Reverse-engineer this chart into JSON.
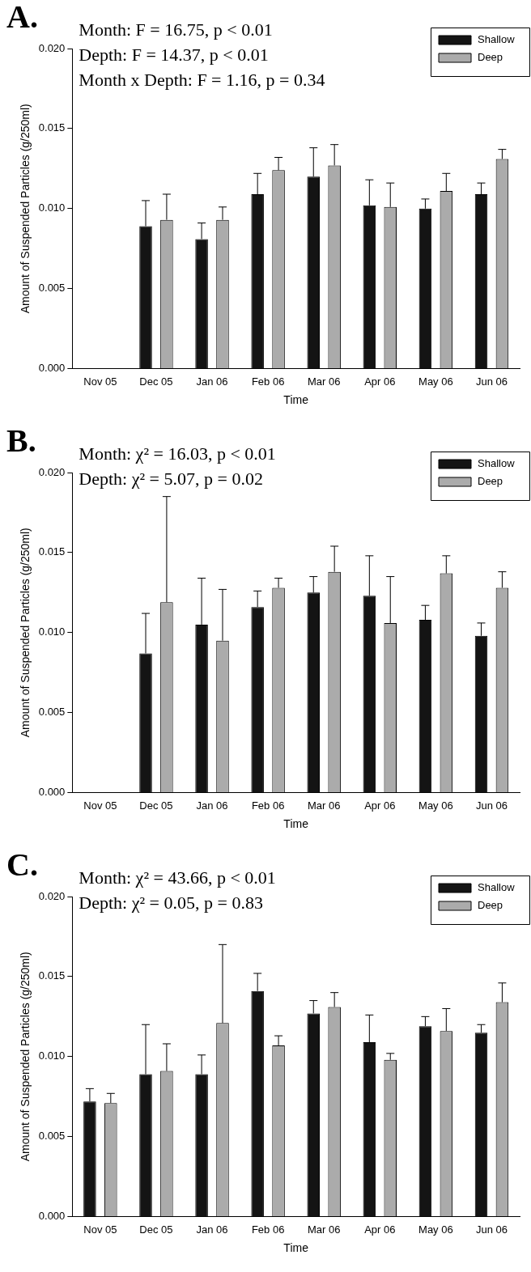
{
  "chart_data": [
    {
      "type": "bar",
      "title": "A.",
      "xlabel": "Time",
      "ylabel": "Amount of Suspended Particles (g/250ml)",
      "annotations": [
        "Month: F = 16.75, p < 0.01",
        "Depth: F = 14.37, p < 0.01",
        "Month x Depth: F = 1.16, p = 0.34"
      ],
      "categories": [
        "Nov 05",
        "Dec 05",
        "Jan 06",
        "Feb 06",
        "Mar 06",
        "Apr 06",
        "May 06",
        "Jun 06"
      ],
      "series": [
        {
          "name": "Shallow",
          "color": "#141414",
          "values": [
            null,
            0.0089,
            0.0081,
            0.0109,
            0.012,
            0.0102,
            0.01,
            0.0109
          ],
          "errors": [
            null,
            [
              0.0089,
              0.0105
            ],
            [
              0.0081,
              0.0091
            ],
            [
              0.0109,
              0.0122
            ],
            [
              0.012,
              0.0138
            ],
            [
              0.0102,
              0.0118
            ],
            [
              0.01,
              0.0106
            ],
            [
              0.0109,
              0.0116
            ]
          ]
        },
        {
          "name": "Deep",
          "color": "#ababab",
          "values": [
            null,
            0.0093,
            0.0093,
            0.0124,
            0.0127,
            0.0101,
            0.0111,
            0.0131
          ],
          "errors": [
            null,
            [
              0.0093,
              0.0109
            ],
            [
              0.0093,
              0.0101
            ],
            [
              0.0124,
              0.0132
            ],
            [
              0.0127,
              0.014
            ],
            [
              0.0101,
              0.0116
            ],
            [
              0.0111,
              0.0122
            ],
            [
              0.0131,
              0.0137
            ]
          ]
        }
      ],
      "ylim": [
        0,
        0.02
      ],
      "yticks": [
        {
          "value": 0,
          "label": "0.000"
        },
        {
          "value": 0.005,
          "label": "0.005"
        },
        {
          "value": 0.01,
          "label": "0.010"
        },
        {
          "value": 0.015,
          "label": "0.015"
        },
        {
          "value": 0.02,
          "label": "0.020"
        }
      ],
      "legend": "top right"
    },
    {
      "type": "bar",
      "title": "B.",
      "xlabel": "Time",
      "ylabel": "Amount of Suspended Particles (g/250ml)",
      "annotations": [
        "Month: χ² = 16.03, p < 0.01",
        "Depth: χ² = 5.07, p = 0.02"
      ],
      "categories": [
        "Nov 05",
        "Dec 05",
        "Jan 06",
        "Feb 06",
        "Mar 06",
        "Apr 06",
        "May 06",
        "Jun 06"
      ],
      "series": [
        {
          "name": "Shallow",
          "color": "#141414",
          "values": [
            null,
            0.0087,
            0.0105,
            0.0116,
            0.0125,
            0.0123,
            0.0108,
            0.0098
          ],
          "errors": [
            null,
            [
              0.0087,
              0.0112
            ],
            [
              0.0105,
              0.0134
            ],
            [
              0.0116,
              0.0126
            ],
            [
              0.0125,
              0.0135
            ],
            [
              0.0123,
              0.0148
            ],
            [
              0.0108,
              0.0117
            ],
            [
              0.0098,
              0.0106
            ]
          ]
        },
        {
          "name": "Deep",
          "color": "#ababab",
          "values": [
            null,
            0.0119,
            0.0095,
            0.0128,
            0.0138,
            0.0106,
            0.0137,
            0.0128
          ],
          "errors": [
            null,
            [
              0.0119,
              0.0185
            ],
            [
              0.0095,
              0.0127
            ],
            [
              0.0128,
              0.0134
            ],
            [
              0.0138,
              0.0154
            ],
            [
              0.0106,
              0.0135
            ],
            [
              0.0137,
              0.0148
            ],
            [
              0.0128,
              0.0138
            ]
          ]
        }
      ],
      "ylim": [
        0,
        0.02
      ],
      "yticks": [
        {
          "value": 0,
          "label": "0.000"
        },
        {
          "value": 0.005,
          "label": "0.005"
        },
        {
          "value": 0.01,
          "label": "0.010"
        },
        {
          "value": 0.015,
          "label": "0.015"
        },
        {
          "value": 0.02,
          "label": "0.020"
        }
      ],
      "legend": "top right"
    },
    {
      "type": "bar",
      "title": "C.",
      "xlabel": "Time",
      "ylabel": "Amount of Suspended Particles (g/250ml)",
      "annotations": [
        "Month: χ² = 43.66, p < 0.01",
        "Depth: χ² = 0.05, p = 0.83"
      ],
      "categories": [
        "Nov 05",
        "Dec 05",
        "Jan 06",
        "Feb 06",
        "Mar 06",
        "Apr 06",
        "May 06",
        "Jun 06"
      ],
      "series": [
        {
          "name": "Shallow",
          "color": "#141414",
          "values": [
            0.0072,
            0.0089,
            0.0089,
            0.0141,
            0.0127,
            0.0109,
            0.0119,
            0.0115
          ],
          "errors": [
            [
              0.0072,
              0.008
            ],
            [
              0.0089,
              0.012
            ],
            [
              0.0089,
              0.0101
            ],
            [
              0.0141,
              0.0152
            ],
            [
              0.0127,
              0.0135
            ],
            [
              0.0109,
              0.0126
            ],
            [
              0.0119,
              0.0125
            ],
            [
              0.0115,
              0.012
            ]
          ]
        },
        {
          "name": "Deep",
          "color": "#ababab",
          "values": [
            0.0071,
            0.0091,
            0.0121,
            0.0107,
            0.0131,
            0.0098,
            0.0116,
            0.0134
          ],
          "errors": [
            [
              0.0071,
              0.0077
            ],
            [
              0.0091,
              0.0108
            ],
            [
              0.0121,
              0.017
            ],
            [
              0.0107,
              0.0113
            ],
            [
              0.0131,
              0.014
            ],
            [
              0.0098,
              0.0102
            ],
            [
              0.0116,
              0.013
            ],
            [
              0.0134,
              0.0146
            ]
          ]
        }
      ],
      "ylim": [
        0,
        0.02
      ],
      "yticks": [
        {
          "value": 0,
          "label": "0.000"
        },
        {
          "value": 0.005,
          "label": "0.005"
        },
        {
          "value": 0.01,
          "label": "0.010"
        },
        {
          "value": 0.015,
          "label": "0.015"
        },
        {
          "value": 0.02,
          "label": "0.020"
        }
      ],
      "legend": "top right"
    }
  ]
}
